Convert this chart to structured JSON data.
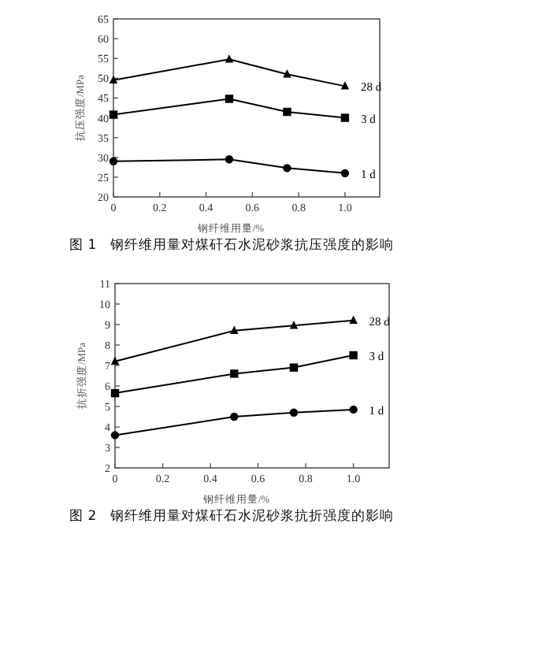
{
  "chart_data": [
    {
      "type": "line",
      "title": "图 1　钢纤维用量对煤矸石水泥砂浆抗压强度的影响",
      "xlabel": "钢纤维用量/%",
      "ylabel": "抗压强度/MPa",
      "x": [
        0,
        0.5,
        0.75,
        1.0
      ],
      "xlim": [
        0,
        1.15
      ],
      "xticks": [
        0,
        0.2,
        0.4,
        0.6,
        0.8,
        {
          "value": 1.0,
          "label": "1.0"
        }
      ],
      "ylim": [
        20,
        65
      ],
      "yticks": [
        20,
        25,
        30,
        35,
        40,
        45,
        50,
        55,
        60,
        65
      ],
      "grid": false,
      "legend": false,
      "line_style": "solid",
      "series": [
        {
          "name": "28 d",
          "color": "#000000",
          "marker": "triangle",
          "values": [
            49.5,
            54.8,
            51,
            48
          ]
        },
        {
          "name": "3 d",
          "color": "#000000",
          "marker": "square",
          "values": [
            40.8,
            44.8,
            41.5,
            40
          ]
        },
        {
          "name": "1 d",
          "color": "#000000",
          "marker": "circle",
          "values": [
            29,
            29.5,
            27.3,
            26
          ]
        }
      ]
    },
    {
      "type": "line",
      "title": "图 2　钢纤维用量对煤矸石水泥砂浆抗折强度的影响",
      "xlabel": "钢纤维用量/%",
      "ylabel": "抗折强度/MPa",
      "x": [
        0,
        0.5,
        0.75,
        1.0
      ],
      "xlim": [
        0,
        1.15
      ],
      "xticks": [
        0,
        0.2,
        0.4,
        0.6,
        0.8,
        {
          "value": 1.0,
          "label": "1.0"
        }
      ],
      "ylim": [
        2,
        11
      ],
      "yticks": [
        2,
        3,
        4,
        5,
        6,
        7,
        8,
        9,
        10,
        11
      ],
      "grid": false,
      "legend": false,
      "line_style": "solid",
      "series": [
        {
          "name": "28 d",
          "color": "#000000",
          "marker": "triangle",
          "values": [
            7.2,
            8.7,
            8.95,
            9.2
          ]
        },
        {
          "name": "3 d",
          "color": "#000000",
          "marker": "square",
          "values": [
            5.65,
            6.6,
            6.9,
            7.5
          ]
        },
        {
          "name": "1 d",
          "color": "#000000",
          "marker": "circle",
          "values": [
            3.6,
            4.5,
            4.7,
            4.85
          ]
        }
      ]
    }
  ]
}
